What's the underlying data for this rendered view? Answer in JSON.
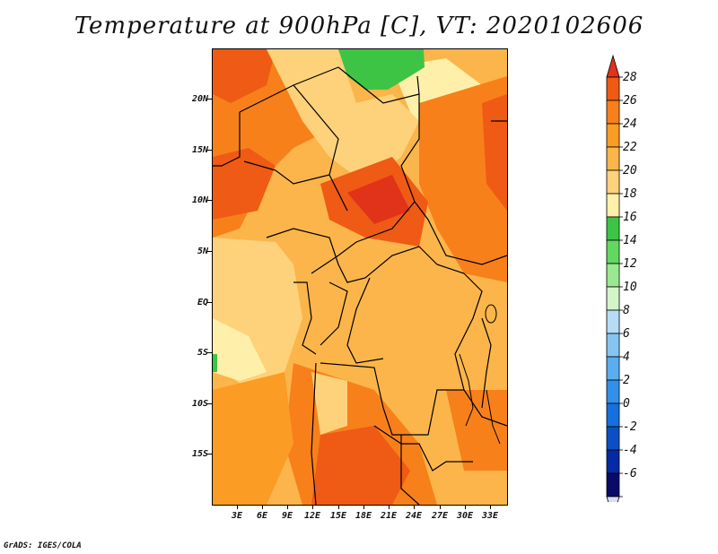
{
  "title": "Temperature at 900hPa [C], VT: 2020102606",
  "footer": "GrADS: IGES/COLA",
  "lat_labels": [
    "20N",
    "15N",
    "10N",
    "5N",
    "EQ",
    "5S",
    "10S",
    "15S"
  ],
  "lon_labels": [
    "3E",
    "6E",
    "9E",
    "12E",
    "15E",
    "18E",
    "21E",
    "24E",
    "27E",
    "30E",
    "33E"
  ],
  "colorbar": {
    "levels": [
      "28",
      "26",
      "24",
      "22",
      "20",
      "18",
      "16",
      "14",
      "12",
      "10",
      "8",
      "6",
      "4",
      "2",
      "0",
      "-2",
      "-4",
      "-6"
    ],
    "colors": [
      "#e0331a",
      "#ef5a14",
      "#f7801b",
      "#fb9c24",
      "#fbb54a",
      "#fed27a",
      "#fef0aa",
      "#3ec445",
      "#62d861",
      "#9ae890",
      "#d3f5ca",
      "#b6dcf6",
      "#86c5f2",
      "#5aaeee",
      "#3390e8",
      "#1670de",
      "#0a50c3",
      "#062aa3",
      "#0a0a68",
      "#d8dcf6"
    ]
  }
}
